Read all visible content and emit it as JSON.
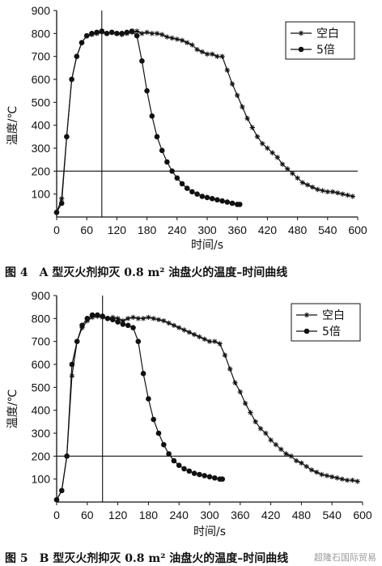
{
  "chart_data": [
    {
      "type": "line",
      "xlabel": "时间/s",
      "ylabel": "温度/℃",
      "xlim": [
        0,
        600
      ],
      "ylim": [
        0,
        900
      ],
      "xticks": [
        0,
        60,
        120,
        180,
        240,
        300,
        360,
        420,
        480,
        540,
        600
      ],
      "yticks": [
        100,
        200,
        300,
        400,
        500,
        600,
        700,
        800,
        900
      ],
      "legend_position": "top-right",
      "reference_line_y": 200,
      "reference_line_x": 90,
      "caption": "图 4　A 型灭火剂抑灭 0.8 m² 油盘火的温度–时间曲线",
      "series": [
        {
          "name": "空白",
          "marker": "star",
          "x": [
            0,
            10,
            20,
            30,
            40,
            50,
            60,
            70,
            80,
            90,
            100,
            110,
            120,
            130,
            140,
            150,
            160,
            170,
            180,
            190,
            200,
            210,
            220,
            230,
            240,
            250,
            260,
            270,
            280,
            290,
            300,
            310,
            320,
            330,
            340,
            350,
            360,
            370,
            380,
            390,
            400,
            410,
            420,
            430,
            440,
            450,
            460,
            470,
            480,
            490,
            500,
            510,
            520,
            530,
            540,
            550,
            560,
            570,
            580,
            590
          ],
          "y": [
            20,
            80,
            350,
            600,
            700,
            760,
            790,
            795,
            800,
            805,
            800,
            805,
            800,
            795,
            800,
            805,
            810,
            800,
            805,
            800,
            800,
            795,
            785,
            780,
            775,
            770,
            760,
            750,
            730,
            720,
            710,
            710,
            700,
            700,
            640,
            580,
            530,
            480,
            430,
            390,
            350,
            320,
            300,
            280,
            260,
            230,
            210,
            190,
            170,
            150,
            140,
            130,
            120,
            115,
            110,
            110,
            105,
            100,
            95,
            90
          ]
        },
        {
          "name": "5倍",
          "marker": "circle",
          "x": [
            0,
            10,
            20,
            30,
            40,
            50,
            60,
            70,
            80,
            90,
            100,
            110,
            120,
            130,
            140,
            150,
            160,
            170,
            180,
            190,
            200,
            210,
            220,
            230,
            240,
            250,
            260,
            270,
            280,
            290,
            300,
            310,
            320,
            330,
            340,
            350,
            360,
            365
          ],
          "y": [
            20,
            60,
            350,
            600,
            700,
            760,
            790,
            800,
            805,
            810,
            800,
            805,
            800,
            800,
            805,
            810,
            790,
            680,
            550,
            440,
            350,
            290,
            240,
            200,
            170,
            145,
            125,
            110,
            100,
            90,
            85,
            80,
            75,
            70,
            65,
            60,
            55,
            55
          ]
        }
      ]
    },
    {
      "type": "line",
      "xlabel": "时间/s",
      "ylabel": "温度/℃",
      "xlim": [
        0,
        600
      ],
      "ylim": [
        0,
        900
      ],
      "xticks": [
        0,
        60,
        120,
        180,
        240,
        300,
        360,
        420,
        480,
        540,
        600
      ],
      "yticks": [
        100,
        200,
        300,
        400,
        500,
        600,
        700,
        800,
        900
      ],
      "legend_position": "top-right",
      "reference_line_y": 200,
      "reference_line_x": 90,
      "caption": "图 5　B 型灭火剂抑灭 0.8 m² 油盘火的温度–时间曲线",
      "series": [
        {
          "name": "空白",
          "marker": "star",
          "x": [
            0,
            10,
            20,
            30,
            40,
            50,
            60,
            70,
            80,
            90,
            100,
            110,
            120,
            130,
            140,
            150,
            160,
            170,
            180,
            190,
            200,
            210,
            220,
            230,
            240,
            250,
            260,
            270,
            280,
            290,
            300,
            310,
            320,
            330,
            340,
            350,
            360,
            370,
            380,
            390,
            400,
            410,
            420,
            430,
            440,
            450,
            460,
            470,
            480,
            490,
            500,
            510,
            520,
            530,
            540,
            550,
            560,
            570,
            580,
            590
          ],
          "y": [
            10,
            50,
            200,
            550,
            700,
            760,
            790,
            805,
            810,
            805,
            800,
            805,
            800,
            790,
            800,
            805,
            800,
            800,
            805,
            800,
            795,
            790,
            780,
            770,
            760,
            750,
            740,
            730,
            720,
            710,
            700,
            700,
            690,
            640,
            580,
            520,
            480,
            430,
            390,
            350,
            320,
            300,
            270,
            250,
            230,
            210,
            200,
            180,
            170,
            155,
            140,
            130,
            120,
            115,
            110,
            105,
            100,
            95,
            95,
            90
          ]
        },
        {
          "name": "5倍",
          "marker": "circle",
          "x": [
            0,
            10,
            20,
            30,
            40,
            50,
            60,
            70,
            80,
            90,
            100,
            110,
            120,
            130,
            140,
            150,
            160,
            170,
            180,
            190,
            200,
            210,
            220,
            230,
            240,
            250,
            260,
            270,
            280,
            290,
            300,
            310,
            320,
            325
          ],
          "y": [
            10,
            50,
            200,
            600,
            700,
            770,
            800,
            815,
            815,
            810,
            800,
            795,
            785,
            775,
            770,
            760,
            700,
            560,
            450,
            360,
            300,
            250,
            210,
            180,
            160,
            145,
            135,
            125,
            120,
            115,
            110,
            105,
            100,
            100
          ]
        }
      ]
    }
  ],
  "watermark": "超隆石国际贸易"
}
